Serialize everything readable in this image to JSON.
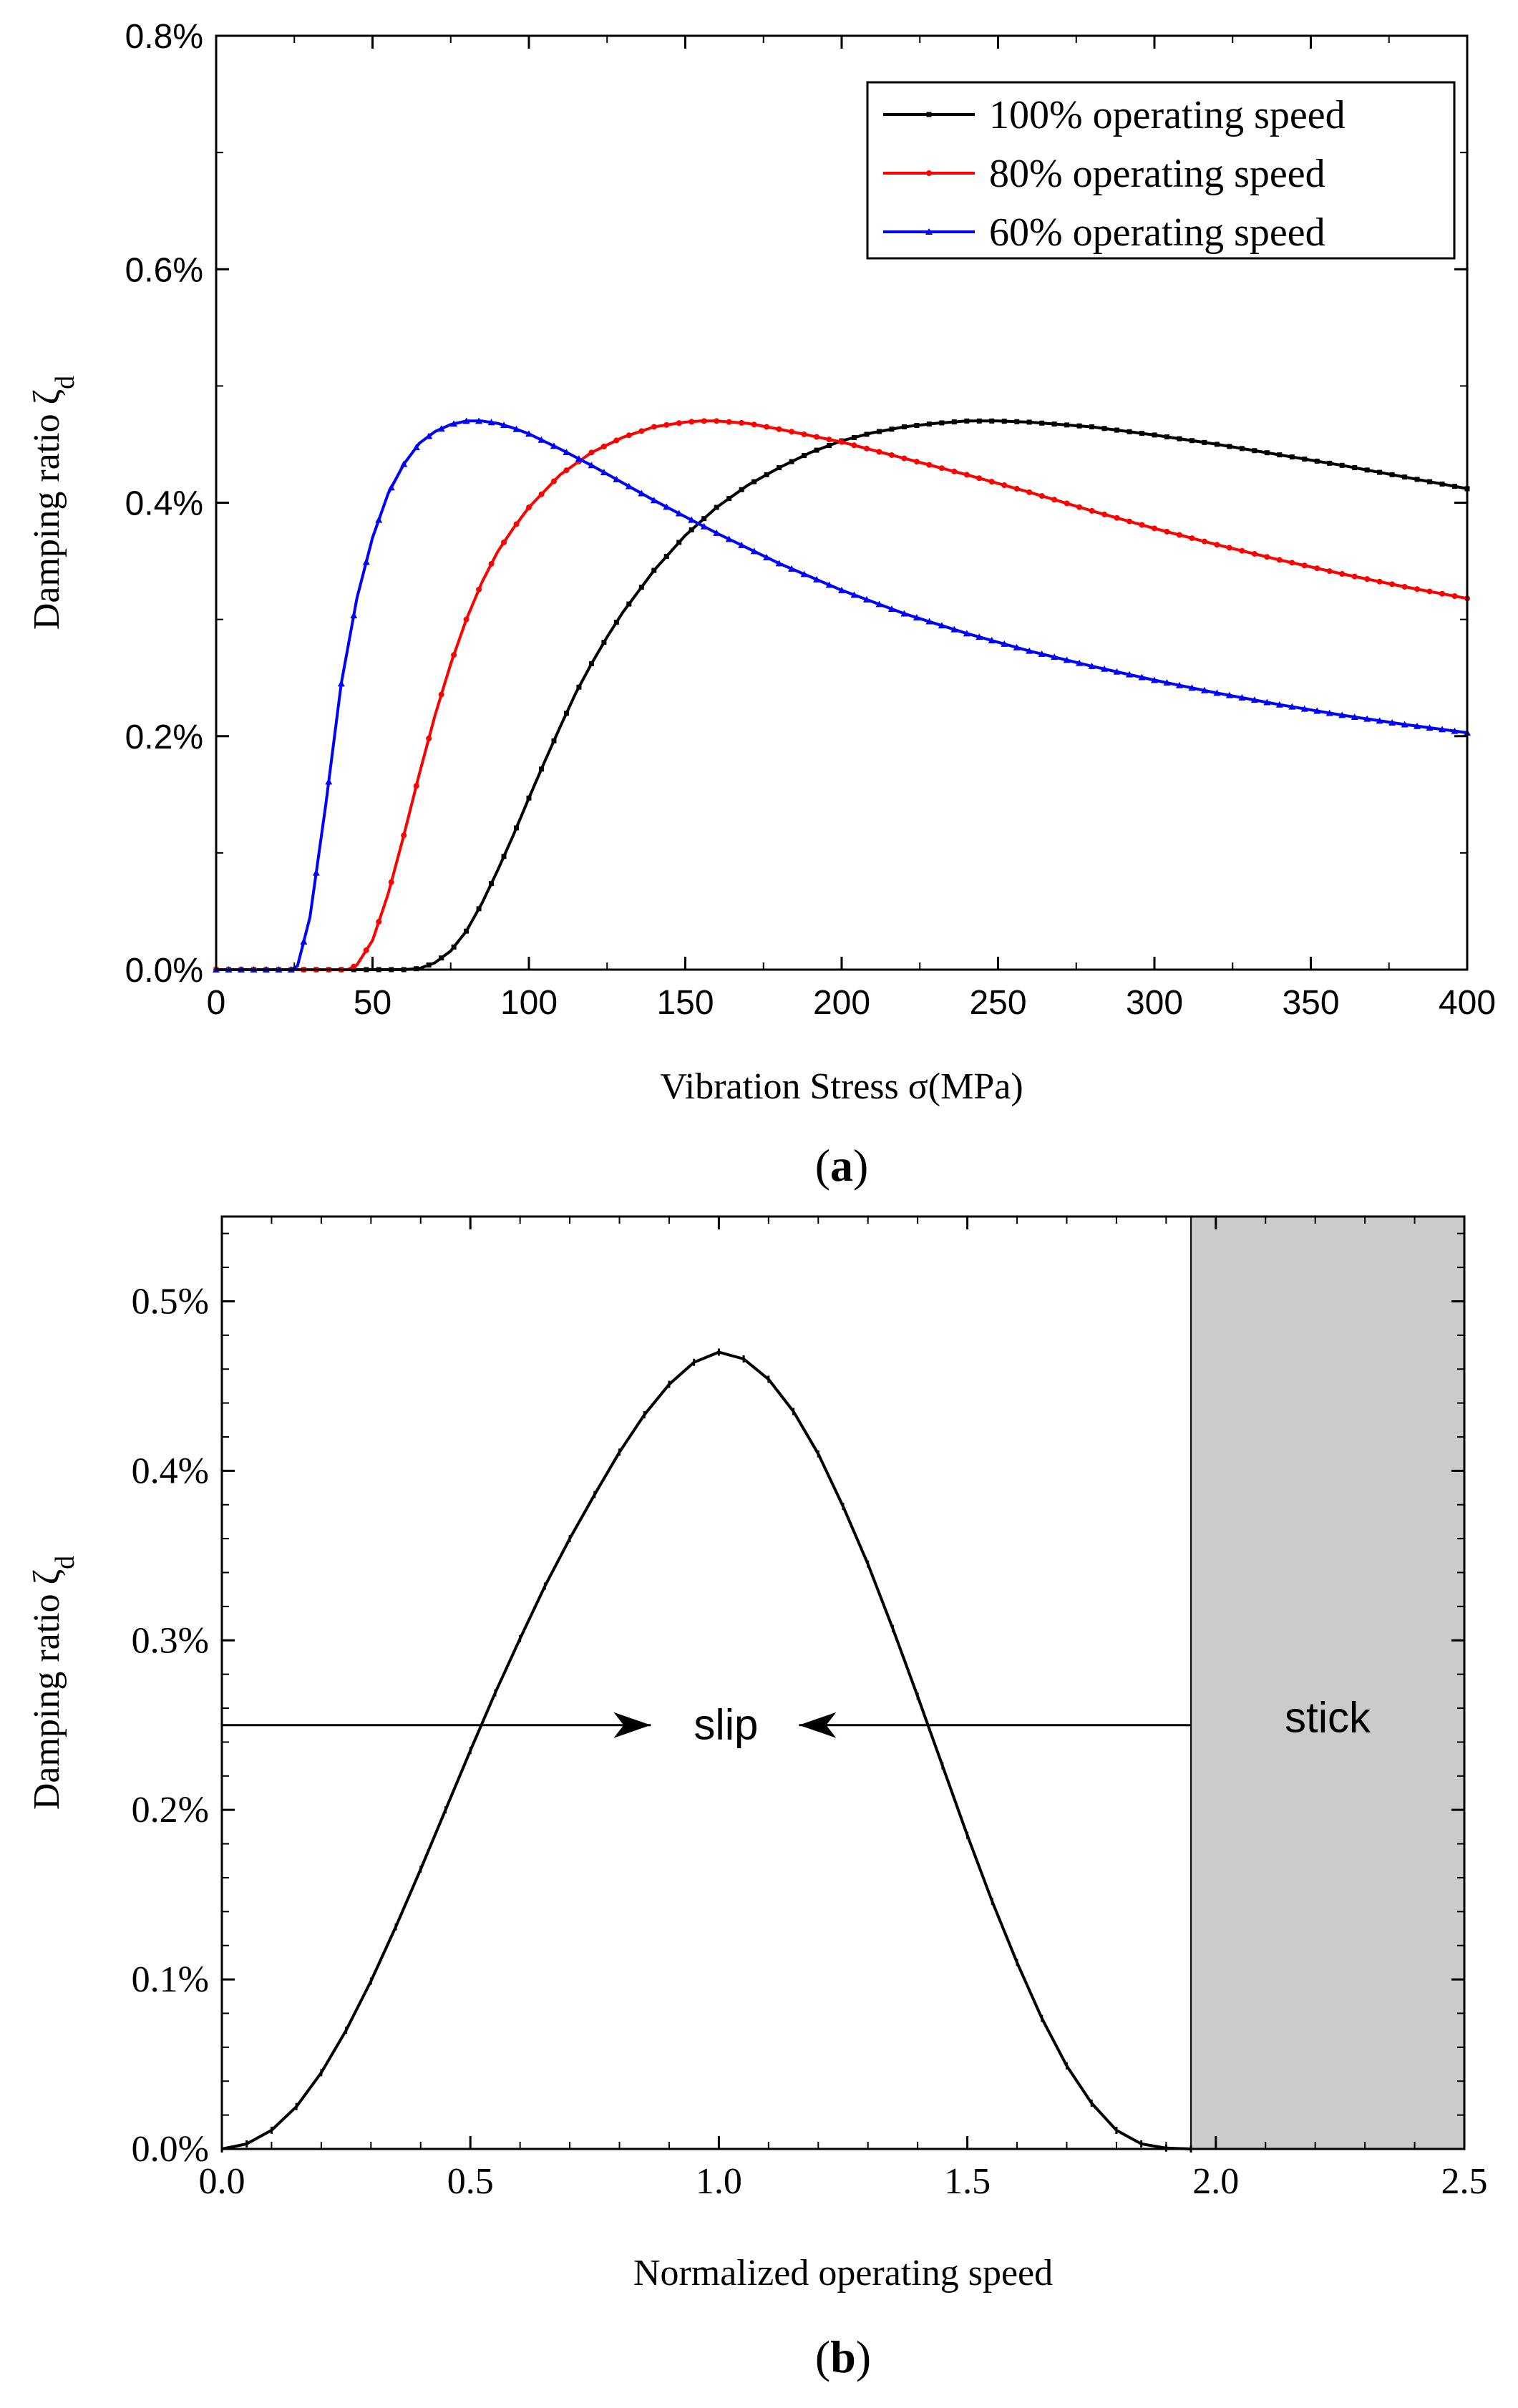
{
  "chart_data": [
    {
      "panel": "(a)",
      "panel_letter": "a",
      "type": "line",
      "xlabel": "Vibration Stress σ(MPa)",
      "ylabel": "Damping ratio ζ",
      "ylabel_sub": "d",
      "xlim": [
        0,
        400
      ],
      "ylim": [
        0,
        0.8
      ],
      "x_ticks": [
        0,
        50,
        100,
        150,
        200,
        250,
        300,
        350,
        400
      ],
      "x_tick_labels": [
        "0",
        "50",
        "100",
        "150",
        "200",
        "250",
        "300",
        "350",
        "400"
      ],
      "y_ticks": [
        0,
        0.2,
        0.4,
        0.6,
        0.8
      ],
      "y_tick_labels": [
        "0.0%",
        "0.2%",
        "0.4%",
        "0.6%",
        "0.8%"
      ],
      "legend_position": "top-right",
      "series": [
        {
          "name": "100% operating speed",
          "color": "#000000",
          "marker": "square",
          "x": [
            0,
            60,
            65,
            70,
            75,
            80,
            85,
            90,
            95,
            100,
            105,
            110,
            115,
            120,
            125,
            130,
            140,
            150,
            160,
            170,
            180,
            190,
            200,
            210,
            220,
            230,
            240,
            250,
            260,
            280,
            300,
            320,
            340,
            360,
            380,
            400
          ],
          "y": [
            0,
            0,
            0.001,
            0.006,
            0.016,
            0.033,
            0.057,
            0.085,
            0.115,
            0.147,
            0.178,
            0.208,
            0.237,
            0.262,
            0.285,
            0.306,
            0.342,
            0.372,
            0.396,
            0.415,
            0.43,
            0.443,
            0.453,
            0.46,
            0.465,
            0.468,
            0.47,
            0.47,
            0.469,
            0.465,
            0.458,
            0.45,
            0.441,
            0.432,
            0.422,
            0.412
          ]
        },
        {
          "name": "80% operating speed",
          "color": "#ff0000",
          "marker": "circle",
          "x": [
            0,
            42,
            45,
            50,
            55,
            60,
            65,
            70,
            75,
            80,
            85,
            90,
            95,
            100,
            110,
            120,
            130,
            140,
            150,
            155,
            160,
            170,
            180,
            200,
            220,
            240,
            260,
            280,
            300,
            320,
            340,
            360,
            380,
            400
          ],
          "y": [
            0,
            0,
            0.004,
            0.025,
            0.065,
            0.115,
            0.168,
            0.218,
            0.262,
            0.3,
            0.332,
            0.358,
            0.378,
            0.396,
            0.424,
            0.443,
            0.456,
            0.465,
            0.469,
            0.47,
            0.47,
            0.468,
            0.463,
            0.452,
            0.438,
            0.424,
            0.409,
            0.393,
            0.378,
            0.364,
            0.351,
            0.339,
            0.328,
            0.318
          ]
        },
        {
          "name": "60% operating speed",
          "color": "#0000ff",
          "marker": "triangle",
          "x": [
            0,
            24,
            26,
            30,
            35,
            40,
            45,
            50,
            55,
            60,
            65,
            70,
            75,
            80,
            85,
            90,
            95,
            100,
            110,
            120,
            130,
            140,
            150,
            160,
            180,
            200,
            220,
            240,
            260,
            280,
            300,
            320,
            340,
            360,
            380,
            400
          ],
          "y": [
            0,
            0,
            0.003,
            0.045,
            0.14,
            0.245,
            0.318,
            0.37,
            0.408,
            0.433,
            0.451,
            0.461,
            0.467,
            0.47,
            0.47,
            0.468,
            0.464,
            0.459,
            0.446,
            0.432,
            0.417,
            0.402,
            0.388,
            0.374,
            0.348,
            0.325,
            0.305,
            0.288,
            0.273,
            0.26,
            0.248,
            0.237,
            0.227,
            0.218,
            0.21,
            0.203
          ]
        }
      ]
    },
    {
      "panel": "(b)",
      "panel_letter": "b",
      "type": "line",
      "xlabel": "Normalized operating speed",
      "ylabel": "Damping ratio ζ",
      "ylabel_sub": "d",
      "xlim": [
        0,
        2.5
      ],
      "ylim": [
        0,
        0.55
      ],
      "x_ticks": [
        0,
        0.5,
        1.0,
        1.5,
        2.0,
        2.5
      ],
      "x_tick_labels": [
        "0.0",
        "0.5",
        "1.0",
        "1.5",
        "2.0",
        "2.5"
      ],
      "y_ticks": [
        0,
        0.1,
        0.2,
        0.3,
        0.4,
        0.5
      ],
      "y_tick_labels": [
        "0.0%",
        "0.1%",
        "0.2%",
        "0.3%",
        "0.4%",
        "0.5%"
      ],
      "stick_region_x": [
        1.95,
        2.5
      ],
      "arrow_y": 0.25,
      "annotations": {
        "slip": "slip",
        "stick": "stick"
      },
      "series": [
        {
          "name": "Damping ratio",
          "color": "#000000",
          "x": [
            0,
            0.05,
            0.1,
            0.15,
            0.2,
            0.25,
            0.3,
            0.35,
            0.4,
            0.45,
            0.5,
            0.55,
            0.6,
            0.65,
            0.7,
            0.75,
            0.8,
            0.85,
            0.9,
            0.95,
            1.0,
            1.05,
            1.1,
            1.15,
            1.2,
            1.25,
            1.3,
            1.35,
            1.4,
            1.45,
            1.5,
            1.55,
            1.6,
            1.65,
            1.7,
            1.75,
            1.8,
            1.85,
            1.9,
            1.95
          ],
          "y": [
            0,
            0.003,
            0.011,
            0.025,
            0.045,
            0.07,
            0.099,
            0.131,
            0.165,
            0.2,
            0.235,
            0.269,
            0.301,
            0.332,
            0.36,
            0.386,
            0.411,
            0.433,
            0.451,
            0.464,
            0.47,
            0.466,
            0.454,
            0.435,
            0.41,
            0.379,
            0.345,
            0.307,
            0.267,
            0.226,
            0.185,
            0.146,
            0.11,
            0.077,
            0.049,
            0.027,
            0.011,
            0.003,
            0.0005,
            0
          ]
        }
      ]
    }
  ]
}
